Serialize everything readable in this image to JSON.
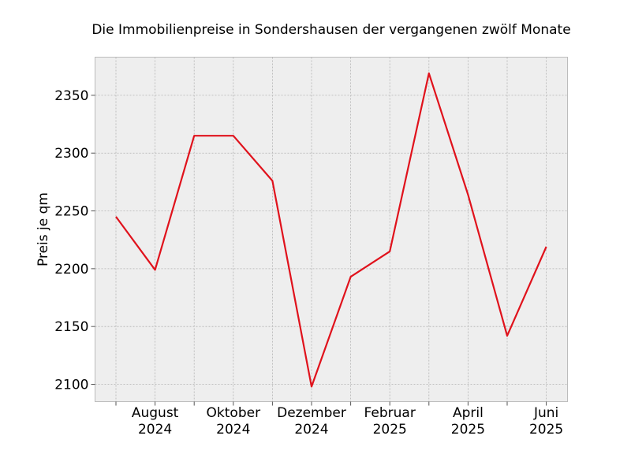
{
  "chart_data": {
    "type": "line",
    "title": "Die Immobilienpreise in Sondershausen der vergangenen zwölf Monate",
    "xlabel": "",
    "ylabel": "Preis je qm",
    "x": [
      "2024-07",
      "2024-08",
      "2024-09",
      "2024-10",
      "2024-11",
      "2024-12",
      "2025-01",
      "2025-02",
      "2025-03",
      "2025-04",
      "2025-05",
      "2025-06"
    ],
    "x_tick_labels": [
      {
        "month": "August",
        "year": "2024"
      },
      {
        "month": "Oktober",
        "year": "2024"
      },
      {
        "month": "Dezember",
        "year": "2024"
      },
      {
        "month": "Februar",
        "year": "2025"
      },
      {
        "month": "April",
        "year": "2025"
      },
      {
        "month": "Juni",
        "year": "2025"
      }
    ],
    "y_ticks": [
      "2100",
      "2150",
      "2200",
      "2250",
      "2300",
      "2350"
    ],
    "ylim": [
      2085,
      2383
    ],
    "series": [
      {
        "color": "#e0121c",
        "values": [
          2245,
          2199,
          2315,
          2315,
          2276,
          2098,
          2193,
          2215,
          2369,
          2264,
          2142,
          2219
        ]
      }
    ],
    "grid": true,
    "background": "#eeeeee"
  }
}
